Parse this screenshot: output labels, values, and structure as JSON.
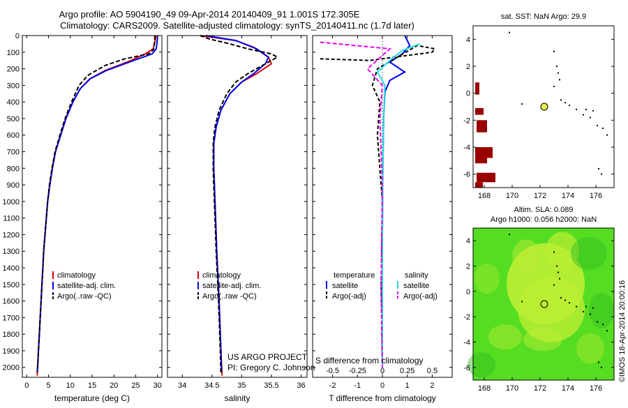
{
  "header": {
    "line1": "Argo profile: AO 5904190_49 09-Apr-2014 20140409_91 1.001S 172.305E",
    "line2": "Climatology: CARS2009. Satellite-adjusted climatology: synTS_20140411.nc (1.7d later)"
  },
  "chart_data": [
    {
      "type": "line",
      "id": "temperature",
      "xlabel": "temperature (deg C)",
      "xlim": [
        -1,
        31
      ],
      "xticks": [
        0,
        5,
        10,
        15,
        20,
        25,
        30
      ],
      "ylim": [
        0,
        2060
      ],
      "yticks": [
        0,
        100,
        200,
        300,
        400,
        500,
        600,
        700,
        800,
        900,
        1000,
        1100,
        1200,
        1300,
        1400,
        1500,
        1600,
        1700,
        1800,
        1900,
        2000
      ],
      "legend": [
        "climatology",
        "satellite-adj. clim.",
        "Argo(..raw -QC)"
      ],
      "series": [
        {
          "name": "climatology",
          "color": "#dd0000",
          "dash": "",
          "points": [
            [
              29.6,
              0
            ],
            [
              29.4,
              40
            ],
            [
              29.0,
              80
            ],
            [
              27.2,
              110
            ],
            [
              23.0,
              160
            ],
            [
              18.0,
              210
            ],
            [
              14.5,
              260
            ],
            [
              12.3,
              320
            ],
            [
              10.6,
              400
            ],
            [
              9.0,
              500
            ],
            [
              7.8,
              600
            ],
            [
              6.6,
              700
            ],
            [
              5.9,
              800
            ],
            [
              5.3,
              900
            ],
            [
              4.8,
              1000
            ],
            [
              4.5,
              1100
            ],
            [
              4.2,
              1200
            ],
            [
              3.9,
              1300
            ],
            [
              3.7,
              1400
            ],
            [
              3.5,
              1500
            ],
            [
              3.3,
              1600
            ],
            [
              3.1,
              1700
            ],
            [
              2.9,
              1800
            ],
            [
              2.7,
              1900
            ],
            [
              2.5,
              2000
            ],
            [
              2.4,
              2050
            ]
          ]
        },
        {
          "name": "satellite-adj. clim.",
          "color": "#0000ee",
          "dash": "",
          "points": [
            [
              30.0,
              0
            ],
            [
              29.9,
              40
            ],
            [
              29.7,
              80
            ],
            [
              28.8,
              110
            ],
            [
              23.5,
              160
            ],
            [
              18.3,
              210
            ],
            [
              14.6,
              260
            ],
            [
              12.3,
              320
            ],
            [
              10.6,
              400
            ],
            [
              9.0,
              500
            ],
            [
              7.8,
              600
            ],
            [
              6.6,
              700
            ],
            [
              5.9,
              800
            ],
            [
              5.3,
              900
            ],
            [
              4.8,
              1000
            ],
            [
              4.5,
              1100
            ],
            [
              4.2,
              1200
            ],
            [
              3.9,
              1300
            ],
            [
              3.7,
              1400
            ],
            [
              3.5,
              1500
            ],
            [
              3.3,
              1600
            ],
            [
              3.1,
              1700
            ],
            [
              2.9,
              1800
            ],
            [
              2.7,
              1900
            ],
            [
              2.5,
              2000
            ],
            [
              2.4,
              2030
            ]
          ]
        },
        {
          "name": "Argo(..raw -QC)",
          "color": "#000000",
          "dash": "6,3",
          "points": [
            [
              29.4,
              0
            ],
            [
              29.3,
              40
            ],
            [
              29.1,
              85
            ],
            [
              28.0,
              110
            ],
            [
              22.5,
              140
            ],
            [
              18.0,
              180
            ],
            [
              14.0,
              240
            ],
            [
              12.0,
              300
            ],
            [
              10.3,
              400
            ],
            [
              8.8,
              500
            ],
            [
              7.6,
              600
            ],
            [
              6.5,
              700
            ],
            [
              5.8,
              800
            ],
            [
              5.2,
              900
            ],
            [
              4.8,
              1000
            ],
            [
              4.5,
              1100
            ],
            [
              4.2,
              1200
            ],
            [
              3.9,
              1300
            ],
            [
              3.7,
              1400
            ],
            [
              3.5,
              1500
            ],
            [
              3.3,
              1600
            ],
            [
              3.1,
              1700
            ],
            [
              2.9,
              1800
            ],
            [
              2.7,
              1900
            ],
            [
              2.5,
              2000
            ],
            [
              2.4,
              2030
            ]
          ]
        }
      ]
    },
    {
      "type": "line",
      "id": "salinity",
      "xlabel": "salinity",
      "xlim": [
        33.75,
        36.1
      ],
      "xticks": [
        34,
        34.5,
        35,
        35.5,
        36
      ],
      "ylim": [
        0,
        2060
      ],
      "legend": [
        "climatology",
        "satellite-adj. clim.",
        "Argo(..raw -QC)"
      ],
      "series": [
        {
          "name": "climatology",
          "color": "#dd0000",
          "dash": "",
          "points": [
            [
              34.3,
              0
            ],
            [
              34.9,
              30
            ],
            [
              35.2,
              70
            ],
            [
              35.45,
              130
            ],
            [
              35.5,
              170
            ],
            [
              35.25,
              230
            ],
            [
              35.0,
              280
            ],
            [
              34.8,
              350
            ],
            [
              34.65,
              450
            ],
            [
              34.57,
              550
            ],
            [
              34.53,
              650
            ],
            [
              34.53,
              800
            ],
            [
              34.55,
              1000
            ],
            [
              34.58,
              1300
            ],
            [
              34.62,
              1600
            ],
            [
              34.65,
              1900
            ],
            [
              34.67,
              2050
            ]
          ]
        },
        {
          "name": "satellite-adj. clim.",
          "color": "#0000ee",
          "dash": "",
          "points": [
            [
              34.4,
              0
            ],
            [
              34.9,
              30
            ],
            [
              35.25,
              80
            ],
            [
              35.45,
              130
            ],
            [
              35.4,
              170
            ],
            [
              35.2,
              230
            ],
            [
              35.0,
              280
            ],
            [
              34.8,
              350
            ],
            [
              34.65,
              450
            ],
            [
              34.57,
              550
            ],
            [
              34.53,
              650
            ],
            [
              34.53,
              800
            ],
            [
              34.55,
              1000
            ],
            [
              34.58,
              1300
            ],
            [
              34.62,
              1600
            ],
            [
              34.65,
              1900
            ],
            [
              34.66,
              2030
            ]
          ]
        },
        {
          "name": "Argo(..raw -QC)",
          "color": "#000000",
          "dash": "6,3",
          "points": [
            [
              34.3,
              0
            ],
            [
              34.45,
              20
            ],
            [
              34.8,
              50
            ],
            [
              35.1,
              80
            ],
            [
              35.5,
              110
            ],
            [
              35.6,
              130
            ],
            [
              35.35,
              180
            ],
            [
              35.1,
              230
            ],
            [
              34.9,
              280
            ],
            [
              34.75,
              350
            ],
            [
              34.62,
              450
            ],
            [
              34.55,
              550
            ],
            [
              34.52,
              650
            ],
            [
              34.52,
              800
            ],
            [
              34.54,
              1000
            ],
            [
              34.57,
              1300
            ],
            [
              34.61,
              1600
            ],
            [
              34.64,
              1900
            ],
            [
              34.65,
              2030
            ]
          ]
        }
      ]
    },
    {
      "type": "line",
      "id": "difference",
      "xlabel": "T difference from climatology",
      "xlabel_top": "S difference from climatology",
      "xlim": [
        -2.8,
        2.8
      ],
      "xticks": [
        -2,
        -1,
        0,
        1,
        2
      ],
      "xticks_top_labels": [
        "-0.5",
        "-0.25",
        "0",
        "0.25",
        "0.5"
      ],
      "xticks_top_positions": [
        -2,
        -1,
        0,
        1,
        2
      ],
      "ylim": [
        0,
        2060
      ],
      "legend_titles": [
        "temperature",
        "salinity"
      ],
      "legend": [
        "satellite",
        "Argo(-adj)",
        "satellite",
        "Argo(-adj)"
      ],
      "series": [
        {
          "name": "T satellite",
          "color": "#0000ee",
          "dash": "",
          "points": [
            [
              0.9,
              0
            ],
            [
              1.1,
              60
            ],
            [
              0.8,
              110
            ],
            [
              0.3,
              160
            ],
            [
              0.9,
              220
            ],
            [
              0.3,
              270
            ],
            [
              0.1,
              340
            ],
            [
              0.05,
              500
            ],
            [
              0.02,
              800
            ],
            [
              0.0,
              1200
            ],
            [
              0.0,
              2000
            ]
          ]
        },
        {
          "name": "T Argo(-adj)",
          "color": "#000000",
          "dash": "5,3",
          "points": [
            [
              -2.5,
              140
            ],
            [
              -0.5,
              150
            ],
            [
              2.0,
              100
            ],
            [
              2.1,
              80
            ],
            [
              1.4,
              60
            ],
            [
              -0.2,
              200
            ],
            [
              -0.4,
              300
            ],
            [
              -0.1,
              400
            ],
            [
              -0.2,
              600
            ],
            [
              -0.1,
              800
            ],
            [
              0.0,
              1000
            ],
            [
              -0.05,
              1500
            ],
            [
              0.0,
              2000
            ]
          ]
        },
        {
          "name": "S satellite",
          "color": "#22dddd",
          "dash": "",
          "points": [
            [
              1.5,
              50
            ],
            [
              0.8,
              90
            ],
            [
              0.3,
              150
            ],
            [
              -0.2,
              220
            ],
            [
              0.1,
              300
            ],
            [
              0.05,
              500
            ],
            [
              0.02,
              800
            ],
            [
              0.0,
              1200
            ],
            [
              0.0,
              2000
            ]
          ]
        },
        {
          "name": "S Argo(-adj)",
          "color": "#ee00ee",
          "dash": "6,3",
          "points": [
            [
              -2.5,
              40
            ],
            [
              0.3,
              80
            ],
            [
              -0.6,
              200
            ],
            [
              0.0,
              300
            ],
            [
              -0.1,
              500
            ],
            [
              0.0,
              900
            ],
            [
              -0.05,
              1500
            ],
            [
              0.0,
              2000
            ]
          ]
        }
      ]
    }
  ],
  "credit": {
    "line1": "US ARGO PROJECT",
    "line2": "PI: Gregory C. Johnson"
  },
  "map_sst": {
    "title": "sat. SST: NaN Argo: 29.9",
    "xticks": [
      168,
      170,
      172,
      174,
      176
    ],
    "yticks": [
      4,
      2,
      0,
      -2,
      -4,
      -6
    ],
    "xlim": [
      167.2,
      177.3
    ],
    "ylim": [
      -7,
      5
    ],
    "argo_pos": [
      172.3,
      -1.0
    ],
    "land_color": "#990000",
    "marker_color": "#eeee44"
  },
  "map_sla": {
    "title1": "Altim. SLA: 0.089",
    "title2": "Argo h1000: 0.056 h2000: NaN",
    "xticks": [
      168,
      170,
      172,
      174,
      176
    ],
    "yticks": [
      4,
      2,
      0,
      -2,
      -4,
      -6
    ],
    "xlim": [
      167.2,
      177.3
    ],
    "ylim": [
      -7,
      5
    ],
    "argo_pos": [
      172.3,
      -1.0
    ],
    "field_color": "#55dd22",
    "hi_color": "#bbee33"
  },
  "watermark": "©IMOS 18-Apr-2014 20:00:16"
}
